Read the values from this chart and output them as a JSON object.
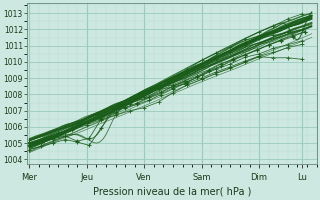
{
  "bg_color": "#cce8e0",
  "grid_color_major": "#99ccbb",
  "grid_color_minor": "#b8ddd5",
  "line_color": "#1a5c1a",
  "xlabel": "Pression niveau de la mer( hPa )",
  "yticks": [
    1004,
    1005,
    1006,
    1007,
    1008,
    1009,
    1010,
    1011,
    1012,
    1013
  ],
  "xtick_labels": [
    "Mer",
    "Jeu",
    "Ven",
    "Sam",
    "Dim",
    "Lu"
  ],
  "xtick_positions": [
    0,
    24,
    48,
    72,
    96,
    114
  ],
  "xlim": [
    -1,
    120
  ],
  "ylim": [
    1003.7,
    1013.6
  ],
  "total_hours": 119
}
